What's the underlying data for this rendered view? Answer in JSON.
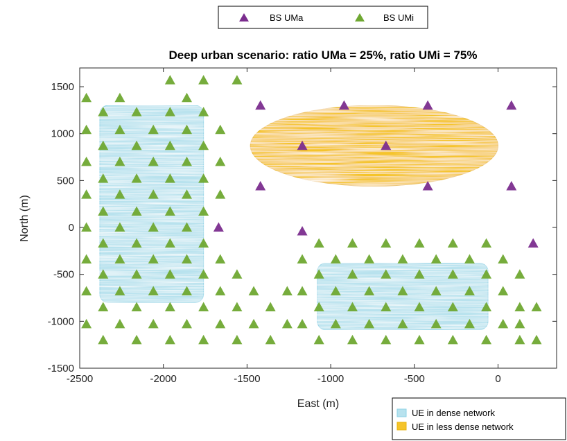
{
  "chart_data": {
    "type": "scatter",
    "title": "Deep urban scenario: ratio UMa = 25%, ratio UMi = 75%",
    "xlabel": "East (m)",
    "ylabel": "North (m)",
    "xlim": [
      -2500,
      350
    ],
    "ylim": [
      -1500,
      1700
    ],
    "xticks": [
      -2500,
      -2000,
      -1500,
      -1000,
      -500,
      0
    ],
    "yticks": [
      -1500,
      -1000,
      -500,
      0,
      500,
      1000,
      1500
    ],
    "grid": false,
    "colors": {
      "uma": "#7B2D8E",
      "umi": "#6FA832",
      "dense": "#B8E2EE",
      "dense_edge": "#8ED3E6",
      "less_dense": "#F5C42A",
      "less_dense_edge": "#E8B40C"
    },
    "legend_top": {
      "placement": "top-center",
      "entries": [
        "BS UMa",
        "BS UMi"
      ]
    },
    "legend_bottom": {
      "placement": "bottom-right",
      "entries": [
        "UE in dense network",
        "UE in less dense network"
      ]
    },
    "regions": [
      {
        "name": "UE in dense network",
        "shape": "rounded-rect",
        "x": [
          -2380,
          -1760
        ],
        "y": [
          -800,
          1300
        ]
      },
      {
        "name": "UE in dense network",
        "shape": "rounded-rect",
        "x": [
          -1080,
          -60
        ],
        "y": [
          -1090,
          -380
        ]
      },
      {
        "name": "UE in less dense network",
        "shape": "ellipse",
        "center": [
          -740,
          870
        ],
        "rx": 740,
        "ry": 430
      }
    ],
    "series": [
      {
        "name": "BS UMa",
        "points": [
          [
            -1420,
            1300
          ],
          [
            -920,
            1300
          ],
          [
            -420,
            1300
          ],
          [
            80,
            1300
          ],
          [
            -1170,
            870
          ],
          [
            -670,
            870
          ],
          [
            -1420,
            440
          ],
          [
            -420,
            440
          ],
          [
            80,
            440
          ],
          [
            -1670,
            0
          ],
          [
            -1170,
            -40
          ],
          [
            210,
            -170
          ]
        ]
      },
      {
        "name": "BS UMi",
        "points": [
          [
            -1960,
            1570
          ],
          [
            -1760,
            1570
          ],
          [
            -1560,
            1570
          ],
          [
            -2460,
            1380
          ],
          [
            -2260,
            1380
          ],
          [
            -1860,
            1380
          ],
          [
            -2360,
            1230
          ],
          [
            -2160,
            1230
          ],
          [
            -1960,
            1230
          ],
          [
            -1760,
            1230
          ],
          [
            -2460,
            1040
          ],
          [
            -2260,
            1040
          ],
          [
            -2060,
            1040
          ],
          [
            -1860,
            1040
          ],
          [
            -1660,
            1040
          ],
          [
            -2360,
            870
          ],
          [
            -2160,
            870
          ],
          [
            -1960,
            870
          ],
          [
            -1760,
            870
          ],
          [
            -2460,
            700
          ],
          [
            -2260,
            700
          ],
          [
            -2060,
            700
          ],
          [
            -1860,
            700
          ],
          [
            -1660,
            700
          ],
          [
            -2360,
            520
          ],
          [
            -2160,
            520
          ],
          [
            -1960,
            520
          ],
          [
            -1760,
            520
          ],
          [
            -2460,
            350
          ],
          [
            -2260,
            350
          ],
          [
            -2060,
            350
          ],
          [
            -1860,
            350
          ],
          [
            -1660,
            350
          ],
          [
            -2360,
            170
          ],
          [
            -2160,
            170
          ],
          [
            -1960,
            170
          ],
          [
            -1760,
            170
          ],
          [
            -2460,
            0
          ],
          [
            -2260,
            0
          ],
          [
            -2060,
            0
          ],
          [
            -1860,
            0
          ],
          [
            -2360,
            -170
          ],
          [
            -2160,
            -170
          ],
          [
            -1960,
            -170
          ],
          [
            -1760,
            -170
          ],
          [
            -1070,
            -170
          ],
          [
            -870,
            -170
          ],
          [
            -670,
            -170
          ],
          [
            -470,
            -170
          ],
          [
            -270,
            -170
          ],
          [
            -70,
            -170
          ],
          [
            -2460,
            -340
          ],
          [
            -2260,
            -340
          ],
          [
            -2060,
            -340
          ],
          [
            -1860,
            -340
          ],
          [
            -1660,
            -340
          ],
          [
            -1170,
            -340
          ],
          [
            -970,
            -340
          ],
          [
            -770,
            -340
          ],
          [
            -570,
            -340
          ],
          [
            -370,
            -340
          ],
          [
            -170,
            -340
          ],
          [
            30,
            -340
          ],
          [
            -2360,
            -500
          ],
          [
            -2160,
            -500
          ],
          [
            -1960,
            -500
          ],
          [
            -1760,
            -500
          ],
          [
            -1560,
            -500
          ],
          [
            -1070,
            -500
          ],
          [
            -870,
            -500
          ],
          [
            -670,
            -500
          ],
          [
            -470,
            -500
          ],
          [
            -270,
            -500
          ],
          [
            -70,
            -500
          ],
          [
            130,
            -500
          ],
          [
            -2460,
            -680
          ],
          [
            -2260,
            -680
          ],
          [
            -2060,
            -680
          ],
          [
            -1860,
            -680
          ],
          [
            -1660,
            -680
          ],
          [
            -1460,
            -680
          ],
          [
            -1260,
            -680
          ],
          [
            -1170,
            -680
          ],
          [
            -970,
            -680
          ],
          [
            -770,
            -680
          ],
          [
            -570,
            -680
          ],
          [
            -370,
            -680
          ],
          [
            -170,
            -680
          ],
          [
            30,
            -680
          ],
          [
            -2360,
            -850
          ],
          [
            -2160,
            -850
          ],
          [
            -1960,
            -850
          ],
          [
            -1760,
            -850
          ],
          [
            -1560,
            -850
          ],
          [
            -1360,
            -850
          ],
          [
            -1070,
            -850
          ],
          [
            -870,
            -850
          ],
          [
            -670,
            -850
          ],
          [
            -470,
            -850
          ],
          [
            -270,
            -850
          ],
          [
            -70,
            -850
          ],
          [
            130,
            -850
          ],
          [
            230,
            -850
          ],
          [
            -2460,
            -1030
          ],
          [
            -2260,
            -1030
          ],
          [
            -2060,
            -1030
          ],
          [
            -1860,
            -1030
          ],
          [
            -1660,
            -1030
          ],
          [
            -1460,
            -1030
          ],
          [
            -1260,
            -1030
          ],
          [
            -1170,
            -1030
          ],
          [
            -970,
            -1030
          ],
          [
            -770,
            -1030
          ],
          [
            -570,
            -1030
          ],
          [
            -370,
            -1030
          ],
          [
            -170,
            -1030
          ],
          [
            30,
            -1030
          ],
          [
            130,
            -1030
          ],
          [
            -2360,
            -1200
          ],
          [
            -2160,
            -1200
          ],
          [
            -1960,
            -1200
          ],
          [
            -1760,
            -1200
          ],
          [
            -1560,
            -1200
          ],
          [
            -1360,
            -1200
          ],
          [
            -1070,
            -1200
          ],
          [
            -870,
            -1200
          ],
          [
            -670,
            -1200
          ],
          [
            -470,
            -1200
          ],
          [
            -270,
            -1200
          ],
          [
            -70,
            -1200
          ],
          [
            130,
            -1200
          ],
          [
            230,
            -1200
          ]
        ]
      }
    ]
  }
}
